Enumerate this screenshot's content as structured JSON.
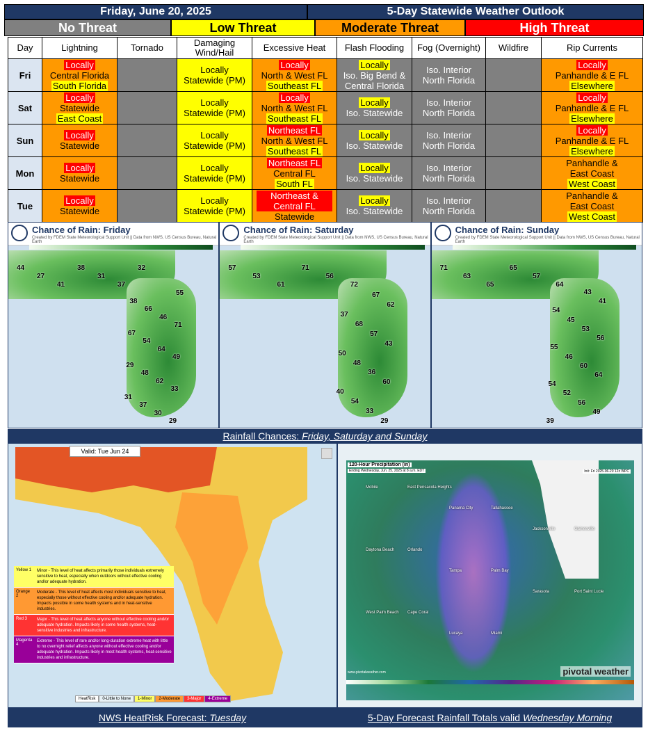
{
  "header": {
    "date": "Friday, June 20, 2025",
    "title": "5-Day Statewide Weather Outlook"
  },
  "legend": {
    "none": "No Threat",
    "low": "Low Threat",
    "moderate": "Moderate Threat",
    "high": "High Threat"
  },
  "columns": [
    "Day",
    "Lightning",
    "Tornado",
    "Damaging Wind/Hail",
    "Excessive Heat",
    "Flash Flooding",
    "Fog (Overnight)",
    "Wildfire",
    "Rip Currents"
  ],
  "rows": [
    {
      "day": "Fri",
      "lightning": [
        "Locally",
        "Central Florida",
        "South Florida"
      ],
      "wind": [
        "Locally",
        "Statewide (PM)"
      ],
      "heat": [
        "Locally",
        "North & West FL",
        "Southeast FL"
      ],
      "flood": [
        "Locally",
        "Iso. Big Bend &",
        "Central Florida"
      ],
      "fog": [
        "Iso. Interior",
        "North Florida"
      ],
      "rip": [
        "Locally",
        "Panhandle & E FL",
        "Elsewhere"
      ]
    },
    {
      "day": "Sat",
      "lightning": [
        "Locally",
        "Statewide",
        "East Coast"
      ],
      "wind": [
        "Locally",
        "Statewide (PM)"
      ],
      "heat": [
        "Locally",
        "North & West FL",
        "Southeast FL"
      ],
      "flood": [
        "Locally",
        "Iso. Statewide"
      ],
      "fog": [
        "Iso. Interior",
        "North Florida"
      ],
      "rip": [
        "Locally",
        "Panhandle & E FL",
        "Elsewhere"
      ]
    },
    {
      "day": "Sun",
      "lightning": [
        "Locally",
        "Statewide"
      ],
      "wind": [
        "Locally",
        "Statewide (PM)"
      ],
      "heat": [
        "Northeast FL",
        "North & West FL",
        "Southeast FL"
      ],
      "flood": [
        "Locally",
        "Iso. Statewide"
      ],
      "fog": [
        "Iso. Interior",
        "North Florida"
      ],
      "rip": [
        "Locally",
        "Panhandle & E FL",
        "Elsewhere"
      ]
    },
    {
      "day": "Mon",
      "lightning": [
        "Locally",
        "Statewide"
      ],
      "wind": [
        "Locally",
        "Statewide (PM)"
      ],
      "heat": [
        "Northeast FL",
        "Central FL",
        "South FL"
      ],
      "flood": [
        "Locally",
        "Iso. Statewide"
      ],
      "fog": [
        "Iso. Interior",
        "North Florida"
      ],
      "rip": [
        "Panhandle &",
        "East Coast",
        "West Coast"
      ]
    },
    {
      "day": "Tue",
      "lightning": [
        "Locally",
        "Statewide"
      ],
      "wind": [
        "Locally",
        "Statewide (PM)"
      ],
      "heat": [
        "Northeast &",
        "Central FL",
        "Statewide"
      ],
      "flood": [
        "Locally",
        "Iso. Statewide"
      ],
      "fog": [
        "Iso. Interior",
        "North Florida"
      ],
      "rip": [
        "Panhandle &",
        "East Coast",
        "West Coast"
      ]
    }
  ],
  "rain_panels": [
    {
      "title": "Chance of Rain: Friday",
      "credit": "Created by FDEM State Meteorological Support Unit || Data from NWS, US Census Bureau, Natural Earth",
      "values": [
        "44",
        "27",
        "41",
        "38",
        "31",
        "37",
        "32",
        "55",
        "38",
        "66",
        "46",
        "71",
        "67",
        "54",
        "64",
        "49",
        "29",
        "48",
        "62",
        "33",
        "31",
        "37",
        "30",
        "29"
      ]
    },
    {
      "title": "Chance of Rain: Saturday",
      "credit": "Created by FDEM State Meteorological Support Unit || Data from NWS, US Census Bureau, Natural Earth",
      "values": [
        "57",
        "53",
        "61",
        "71",
        "56",
        "72",
        "67",
        "62",
        "37",
        "68",
        "57",
        "43",
        "50",
        "48",
        "36",
        "60",
        "40",
        "54",
        "33",
        "29"
      ]
    },
    {
      "title": "Chance of Rain: Sunday",
      "credit": "Created by FDEM State Meteorological Support Unit || Data from NWS, US Census Bureau, Natural Earth",
      "values": [
        "71",
        "63",
        "65",
        "65",
        "57",
        "64",
        "43",
        "41",
        "54",
        "45",
        "53",
        "56",
        "55",
        "46",
        "60",
        "64",
        "54",
        "52",
        "56",
        "49",
        "39"
      ]
    }
  ],
  "captions": {
    "rain": "Rainfall Chances: ",
    "rain_em": "Friday, Saturday and Sunday",
    "heat": "NWS HeatRisk Forecast: ",
    "heat_em": "Tuesday",
    "qpf": "5-Day Forecast Rainfall Totals valid ",
    "qpf_em": "Wednesday Morning"
  },
  "heatrisk": {
    "valid": "Valid:    Tue  Jun 24",
    "levels": [
      {
        "name": "Yellow",
        "num": "1",
        "text": "Minor - This level of heat affects primarily those individuals extremely sensitive to heat, especially when outdoors without effective cooling and/or adequate hydration.",
        "color": "#ffff66"
      },
      {
        "name": "Orange",
        "num": "2",
        "text": "Moderate - This level of heat affects most individuals sensitive to heat, especially those without effective cooling and/or adequate hydration. Impacts possible in some health systems and in heat-sensitive industries.",
        "color": "#ff9933"
      },
      {
        "name": "Red",
        "num": "3",
        "text": "Major - This level of heat affects anyone without effective cooling and/or adequate hydration. Impacts likely in some health systems, heat-sensitive industries and infrastructure.",
        "color": "#ff3333"
      },
      {
        "name": "Magenta",
        "num": "4",
        "text": "Extreme - This level of rare and/or long-duration extreme heat with little to no overnight relief affects anyone without effective cooling and/or adequate hydration. Impacts likely in most health systems, heat-sensitive industries and infrastructure.",
        "color": "#990099"
      }
    ],
    "key": [
      "HeatRisk",
      "0-Little to None",
      "1-Minor",
      "2-Moderate",
      "3-Major",
      "4-Extreme"
    ]
  },
  "qpf": {
    "title": "120-Hour Precipitation (in)",
    "sub": "Ending Wednesday, Jun. 25, 2025 at 8 a.m. EDT",
    "init": "Init: Fri 2025-06-20 12z WPC",
    "brand": "pivotal weather",
    "site": "www.pivotalweather.com",
    "cities": [
      "Mobile",
      "East Pensacola Heights",
      "Panama City",
      "Tallahassee",
      "Jacksonville",
      "Gainesville",
      "Daytona Beach",
      "Orlando",
      "Tampa",
      "Palm Bay",
      "Sarasota",
      "Port Saint Lucie",
      "West Palm Beach",
      "Cape Coral",
      "Lucaya",
      "Miami"
    ]
  }
}
